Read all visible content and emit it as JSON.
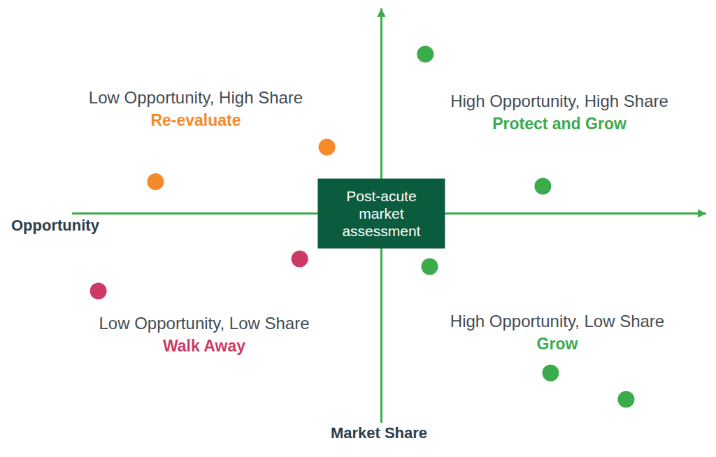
{
  "chart_data": {
    "type": "scatter",
    "center_label": "Post-acute market assessment",
    "x_label": "Opportunity",
    "y_label": "Market Share",
    "xlim": [
      -10,
      10.5
    ],
    "ylim": [
      -10.2,
      10
    ],
    "tick_labels": false,
    "grid": false,
    "marker": "circle",
    "x": [
      1.42,
      -1.76,
      -7.3,
      5.22,
      -2.64,
      -9.15,
      1.56,
      5.47,
      7.91
    ],
    "y": [
      7.77,
      3.24,
      1.55,
      1.33,
      -2.21,
      -3.78,
      -2.59,
      -7.77,
      -9.06
    ],
    "colors": [
      "#3cab4b",
      "#f58a2a",
      "#f58a2a",
      "#3cab4b",
      "#cc3a66",
      "#cc3a66",
      "#3cab4b",
      "#3cab4b",
      "#3cab4b"
    ],
    "quadrants": [
      {
        "position": "top-left",
        "label": "Low Opportunity, High Share",
        "action": "Re-evaluate",
        "color": "#f58a2a"
      },
      {
        "position": "top-right",
        "label": "High Opportunity, High Share",
        "action": "Protect and Grow",
        "color": "#3cab4b"
      },
      {
        "position": "bottom-left",
        "label": "Low Opportunity, Low Share",
        "action": "Walk Away",
        "color": "#cc3a66"
      },
      {
        "position": "bottom-right",
        "label": "High Opportunity, Low Share",
        "action": "Grow",
        "color": "#3cab4b"
      }
    ]
  }
}
